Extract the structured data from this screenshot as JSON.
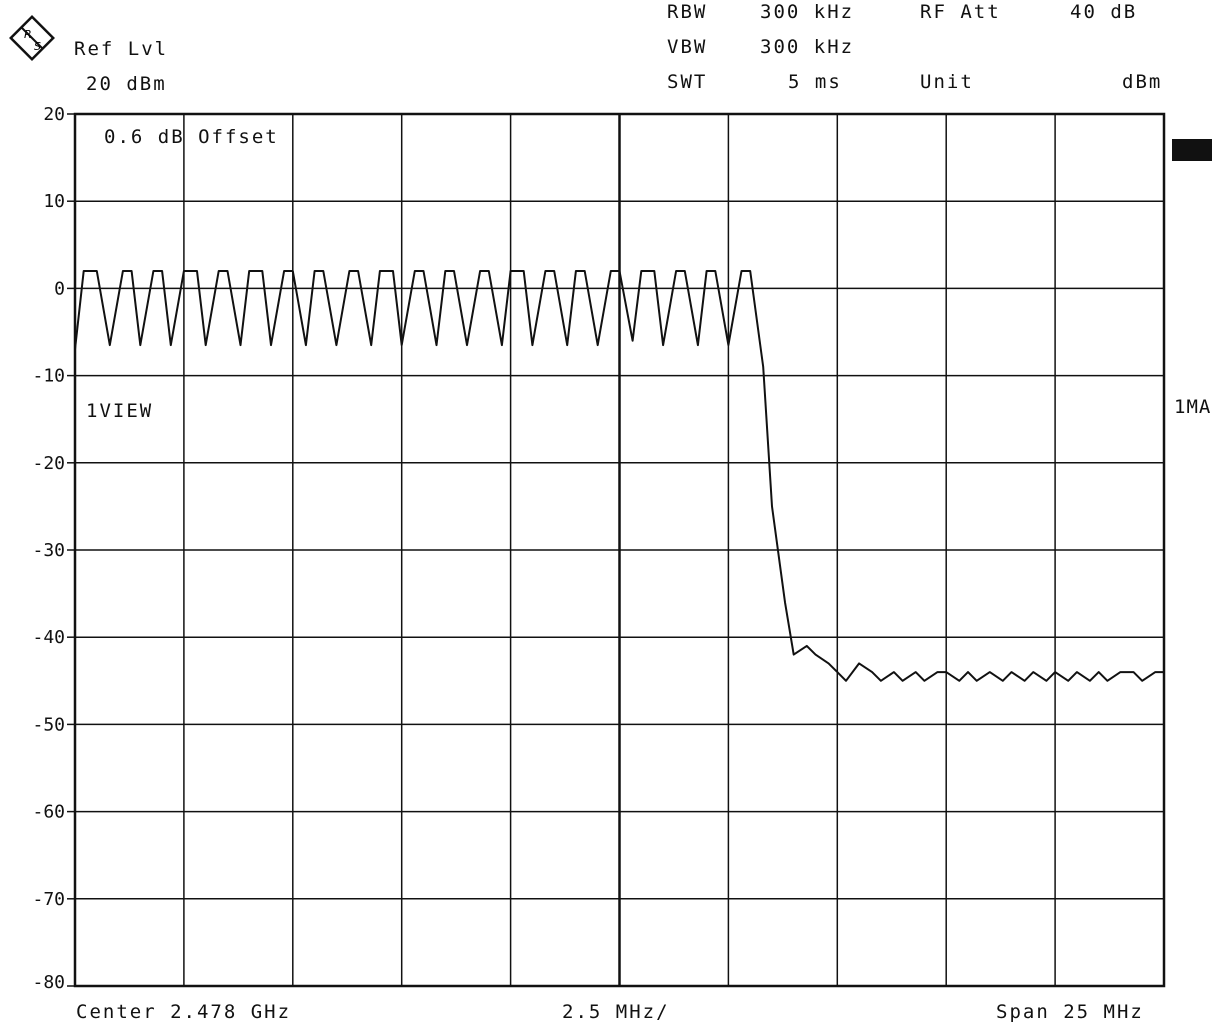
{
  "header": {
    "brand": "R&S",
    "ref_lvl_label": "Ref Lvl",
    "ref_lvl_value": "20 dBm",
    "rbw_label": "RBW",
    "rbw_value": "300 kHz",
    "vbw_label": "VBW",
    "vbw_value": "300 kHz",
    "swt_label": "SWT",
    "swt_value": "5 ms",
    "rf_att_label": "RF Att",
    "rf_att_value": "40 dB",
    "unit_label": "Unit",
    "unit_value": "dBm"
  },
  "annotations": {
    "offset": "0.6 dB Offset",
    "trace_mode": "1VIEW",
    "trace_detector": "1MA"
  },
  "footer": {
    "center": "Center 2.478 GHz",
    "scale": "2.5 MHz/",
    "span": "Span 25 MHz"
  },
  "colors": {
    "trace": "#111111",
    "grid": "#111111",
    "background": "#ffffff"
  },
  "chart_data": {
    "type": "line",
    "title": "",
    "xlabel": "",
    "ylabel": "",
    "xlim": [
      2465.5,
      2490.5
    ],
    "ylim": [
      -80,
      20
    ],
    "grid": true,
    "y_ticks": [
      "20",
      "10",
      "0",
      "-10",
      "-20",
      "-30",
      "-40",
      "-50",
      "-60",
      "-70",
      "-80"
    ],
    "x_divisions": 10,
    "series": [
      {
        "name": "",
        "x": [
          2465.5,
          2465.7,
          2466.0,
          2466.3,
          2466.6,
          2466.8,
          2467.0,
          2467.3,
          2467.5,
          2467.7,
          2468.0,
          2468.3,
          2468.5,
          2468.8,
          2469.0,
          2469.3,
          2469.5,
          2469.8,
          2470.0,
          2470.3,
          2470.5,
          2470.8,
          2471.0,
          2471.2,
          2471.5,
          2471.8,
          2472.0,
          2472.3,
          2472.5,
          2472.8,
          2473.0,
          2473.3,
          2473.5,
          2473.8,
          2474.0,
          2474.2,
          2474.5,
          2474.8,
          2475.0,
          2475.3,
          2475.5,
          2475.8,
          2476.0,
          2476.3,
          2476.5,
          2476.8,
          2477.0,
          2477.2,
          2477.5,
          2477.8,
          2478.0,
          2478.3,
          2478.5,
          2478.8,
          2479.0,
          2479.3,
          2479.5,
          2479.8,
          2480.0,
          2480.2,
          2480.5,
          2480.8,
          2481.0,
          2481.3,
          2481.5,
          2481.8,
          2482.0,
          2482.3,
          2482.5,
          2482.8,
          2483.0,
          2483.2,
          2483.5,
          2483.8,
          2484.0,
          2484.3,
          2484.5,
          2484.8,
          2485.0,
          2485.3,
          2485.5,
          2485.8,
          2486.0,
          2486.2,
          2486.5,
          2486.8,
          2487.0,
          2487.3,
          2487.5,
          2487.8,
          2488.0,
          2488.3,
          2488.5,
          2488.8,
          2489.0,
          2489.2,
          2489.5,
          2489.8,
          2490.0,
          2490.3,
          2490.5
        ],
        "values": [
          -7,
          2,
          2,
          -6.5,
          2,
          2,
          -6.5,
          2,
          2,
          -6.5,
          2,
          2,
          -6.5,
          2,
          2,
          -6.5,
          2,
          2,
          -6.5,
          2,
          2,
          -6.5,
          2,
          2,
          -6.5,
          2,
          2,
          -6.5,
          2,
          2,
          -6.5,
          2,
          2,
          -6.5,
          2,
          2,
          -6.5,
          2,
          2,
          -6.5,
          2,
          2,
          -6.5,
          2,
          2,
          -6.5,
          2,
          2,
          -6.5,
          2,
          2,
          -6,
          2,
          2,
          -6.5,
          2,
          2,
          -6.5,
          2,
          2,
          -6.5,
          2,
          2,
          -9,
          -25,
          -36,
          -42,
          -41,
          -42,
          -43,
          -44,
          -45,
          -43,
          -44,
          -45,
          -44,
          -45,
          -44,
          -45,
          -44,
          -44,
          -45,
          -44,
          -45,
          -44,
          -45,
          -44,
          -45,
          -44,
          -45,
          -44,
          -45,
          -44,
          -45,
          -44,
          -45,
          -44,
          -44,
          -45,
          -44,
          -44
        ]
      }
    ]
  }
}
